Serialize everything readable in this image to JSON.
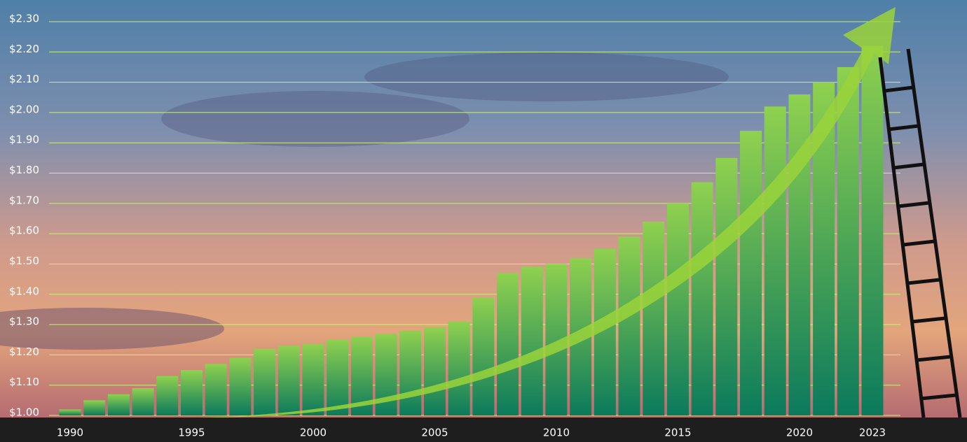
{
  "chart_data": {
    "type": "bar",
    "categories": [
      "1990",
      null,
      null,
      null,
      null,
      "1995",
      null,
      null,
      null,
      null,
      "2000",
      null,
      null,
      null,
      null,
      "2005",
      null,
      null,
      null,
      null,
      "2010",
      null,
      null,
      null,
      null,
      "2015",
      null,
      null,
      null,
      null,
      "2020",
      null,
      null,
      "2023"
    ],
    "values": [
      1.02,
      1.05,
      1.07,
      1.09,
      1.13,
      1.15,
      1.17,
      1.19,
      1.22,
      1.23,
      1.235,
      1.25,
      1.26,
      1.27,
      1.28,
      1.29,
      1.31,
      1.39,
      1.47,
      1.49,
      1.5,
      1.52,
      1.55,
      1.59,
      1.64,
      1.7,
      1.77,
      1.85,
      1.94,
      2.02,
      2.06,
      2.1,
      2.15,
      2.22
    ],
    "color": "#8fd14f",
    "ylim": [
      1.0,
      2.3
    ],
    "yticks": [
      {
        "value": 1.0,
        "label": "$1.00"
      },
      {
        "value": 1.1,
        "label": "$1.10"
      },
      {
        "value": 1.2,
        "label": "$1.20"
      },
      {
        "value": 1.3,
        "label": "$1.30"
      },
      {
        "value": 1.4,
        "label": "$1.40"
      },
      {
        "value": 1.5,
        "label": "$1.50"
      },
      {
        "value": 1.6,
        "label": "$1.60"
      },
      {
        "value": 1.7,
        "label": "$1.70"
      },
      {
        "value": 1.8,
        "label": "$1.80"
      },
      {
        "value": 1.9,
        "label": "$1.90"
      },
      {
        "value": 2.0,
        "label": "$2.00"
      },
      {
        "value": 2.1,
        "label": "$2.10"
      },
      {
        "value": 2.2,
        "label": "$2.20"
      },
      {
        "value": 2.3,
        "label": "$2.30"
      }
    ],
    "grid": true
  }
}
